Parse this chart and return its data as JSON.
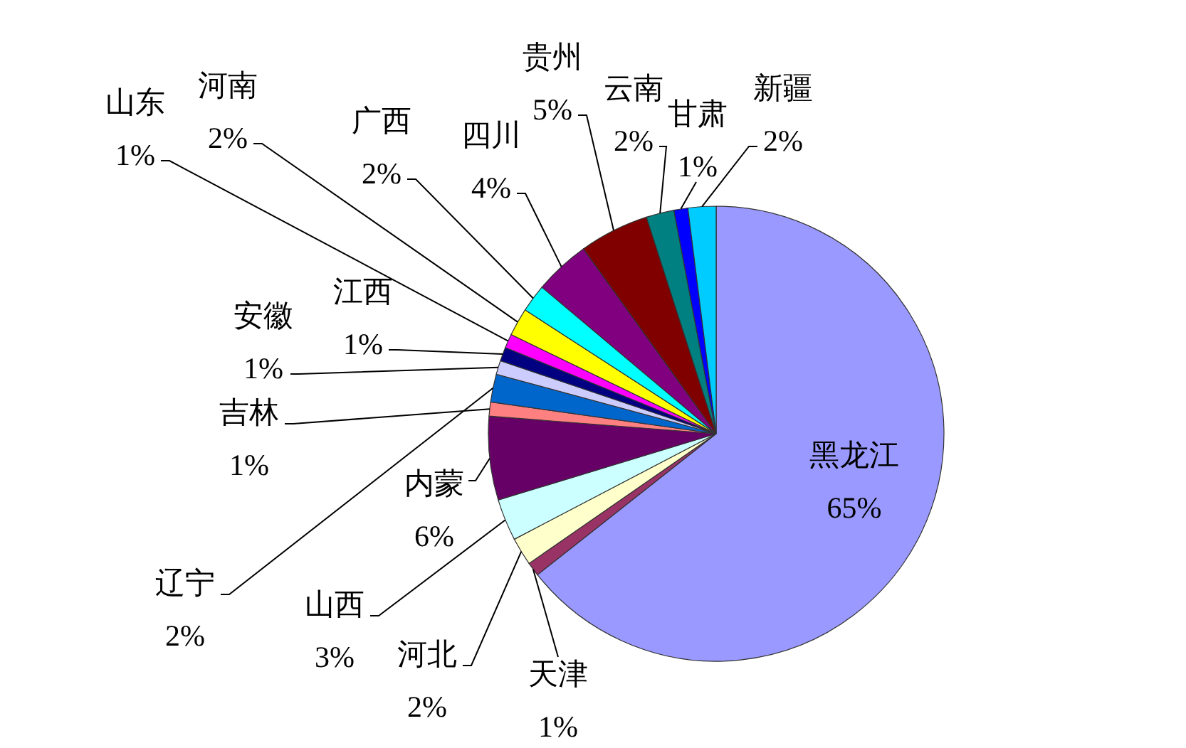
{
  "chart_data": {
    "type": "pie",
    "categories": [
      "黑龙江",
      "天津",
      "河北",
      "山西",
      "内蒙",
      "吉林",
      "辽宁",
      "安徽",
      "江西",
      "山东",
      "河南",
      "广西",
      "四川",
      "贵州",
      "云南",
      "甘肃",
      "新疆"
    ],
    "values": [
      65,
      1,
      2,
      3,
      6,
      1,
      2,
      1,
      1,
      1,
      2,
      2,
      4,
      5,
      2,
      1,
      2
    ],
    "colors": [
      "#9999ff",
      "#993366",
      "#ffffcc",
      "#ccffff",
      "#660066",
      "#ff8080",
      "#0066cc",
      "#ccccff",
      "#000080",
      "#ff00ff",
      "#ffff00",
      "#00ffff",
      "#800080",
      "#800000",
      "#008080",
      "#0000ff",
      "#00ccff"
    ],
    "value_labels": [
      "65%",
      "1%",
      "2%",
      "3%",
      "6%",
      "1%",
      "2%",
      "1%",
      "1%",
      "1%",
      "2%",
      "2%",
      "4%",
      "5%",
      "2%",
      "1%",
      "2%"
    ]
  }
}
